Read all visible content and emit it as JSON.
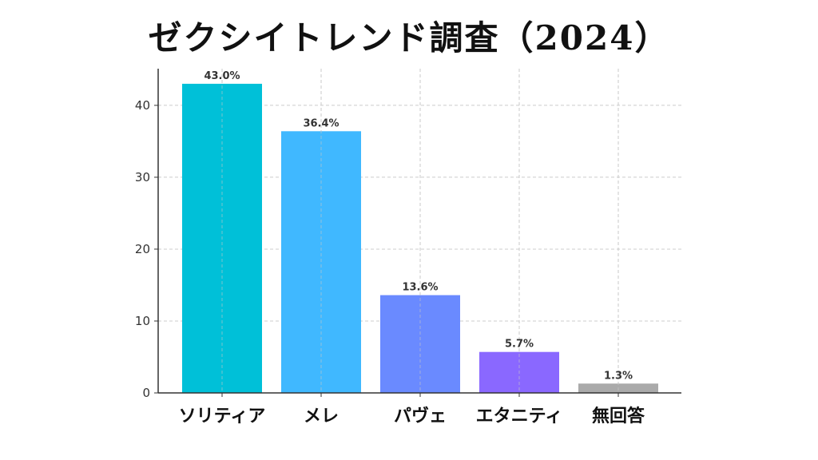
{
  "chart_data": {
    "type": "bar",
    "title": "ゼクシイトレンド調査（2024）",
    "categories": [
      "ソリティア",
      "メレ",
      "パヴェ",
      "エタニティ",
      "無回答"
    ],
    "values": [
      43.0,
      36.4,
      13.6,
      5.7,
      1.3
    ],
    "data_labels": [
      "43.0%",
      "36.4%",
      "13.6%",
      "5.7%",
      "1.3%"
    ],
    "colors": [
      "#00c0d8",
      "#40b8ff",
      "#6a8aff",
      "#8a68ff",
      "#aaaaaa"
    ],
    "xlabel": "",
    "ylabel": "",
    "ylim": [
      0,
      45.1
    ],
    "yticks": [
      0,
      10,
      20,
      30,
      40
    ],
    "grid": true,
    "legend": "none"
  }
}
